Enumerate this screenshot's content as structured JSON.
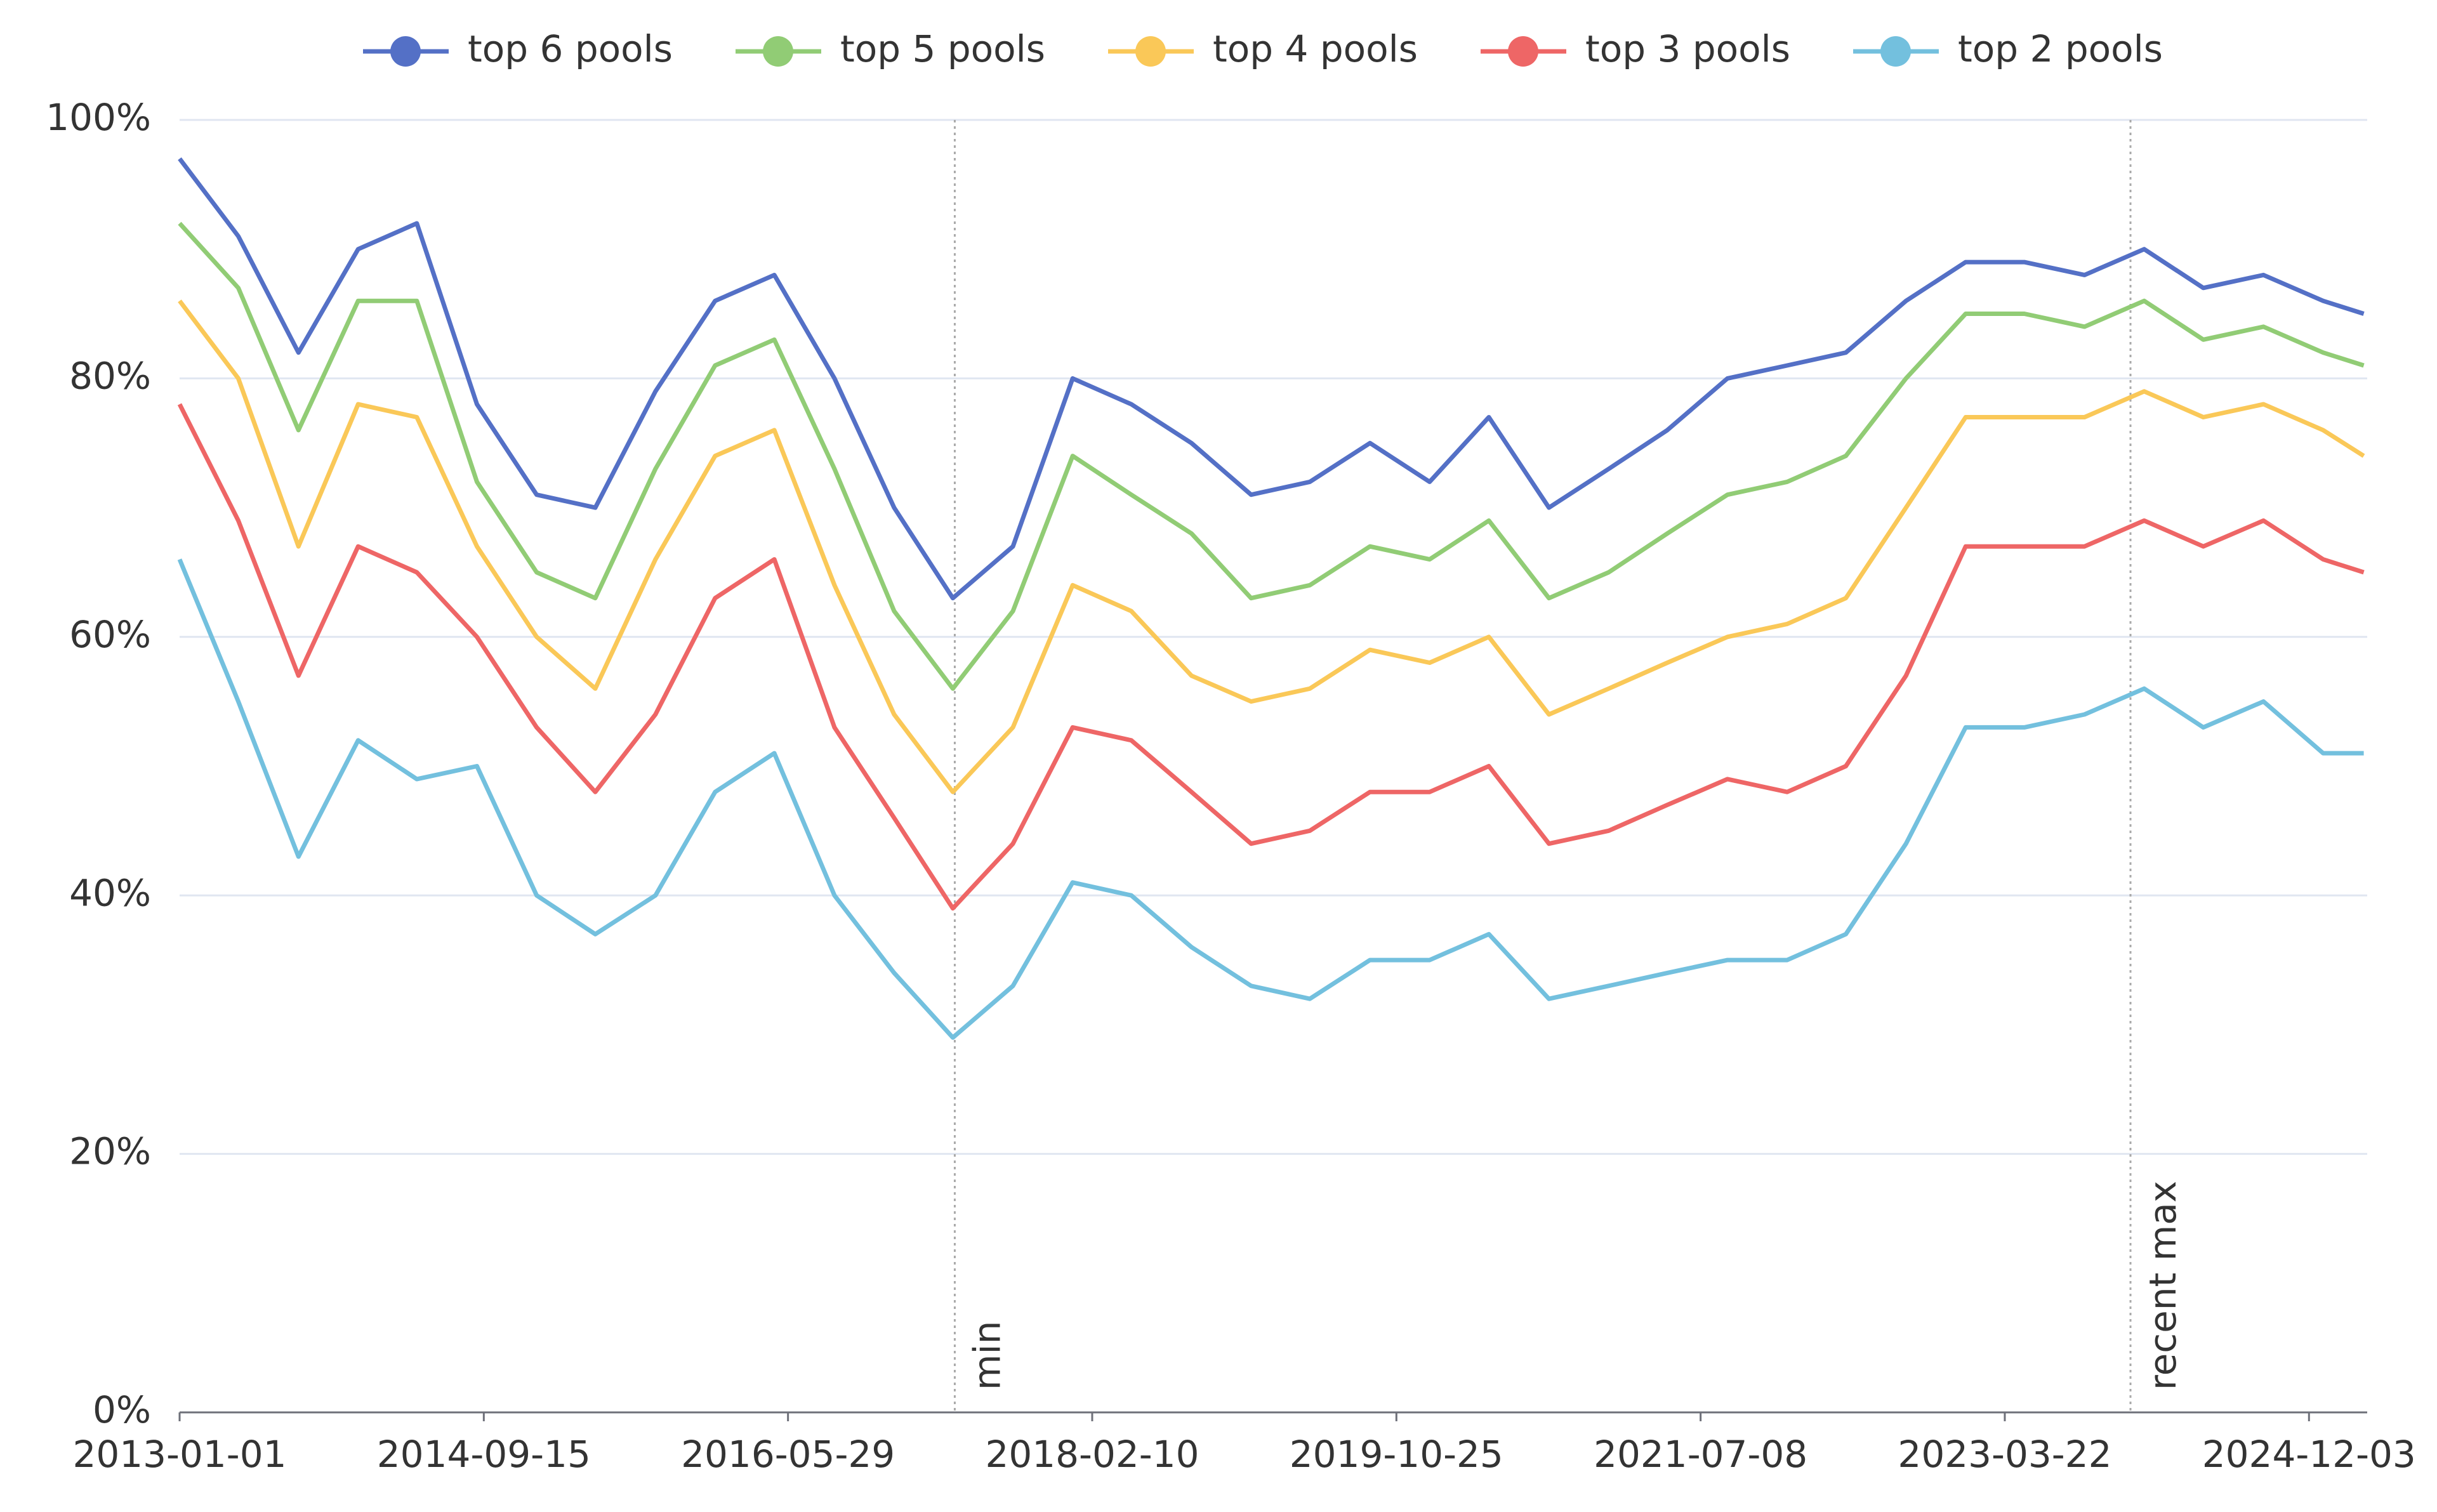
{
  "chart_data": {
    "type": "line",
    "x": [
      "2013-01-01",
      "2013-05-01",
      "2013-09-01",
      "2014-01-01",
      "2014-05-01",
      "2014-09-01",
      "2015-01-01",
      "2015-05-01",
      "2015-09-01",
      "2016-01-01",
      "2016-05-01",
      "2016-09-01",
      "2017-01-01",
      "2017-05-01",
      "2017-09-01",
      "2018-01-01",
      "2018-05-01",
      "2018-09-01",
      "2019-01-01",
      "2019-05-01",
      "2019-09-01",
      "2020-01-01",
      "2020-05-01",
      "2020-09-01",
      "2021-01-01",
      "2021-05-01",
      "2021-09-01",
      "2022-01-01",
      "2022-05-01",
      "2022-09-01",
      "2023-01-01",
      "2023-05-01",
      "2023-09-01",
      "2024-01-01",
      "2024-05-01",
      "2024-09-01",
      "2025-01-01",
      "2025-03-25"
    ],
    "series": [
      {
        "name": "top 6 pools",
        "color": "#5470c6",
        "values": [
          97,
          91,
          82,
          90,
          92,
          78,
          71,
          70,
          79,
          86,
          88,
          80,
          70,
          63,
          67,
          80,
          78,
          75,
          71,
          72,
          75,
          72,
          77,
          70,
          73,
          76,
          80,
          81,
          82,
          86,
          89,
          89,
          88,
          90,
          87,
          88,
          86,
          85
        ]
      },
      {
        "name": "top 5 pools",
        "color": "#91cc75",
        "values": [
          92,
          87,
          76,
          86,
          86,
          72,
          65,
          63,
          73,
          81,
          83,
          73,
          62,
          56,
          62,
          74,
          71,
          68,
          63,
          64,
          67,
          66,
          69,
          63,
          65,
          68,
          71,
          72,
          74,
          80,
          85,
          85,
          84,
          86,
          83,
          84,
          82,
          81
        ]
      },
      {
        "name": "top 4 pools",
        "color": "#fac858",
        "values": [
          86,
          80,
          67,
          78,
          77,
          67,
          60,
          56,
          66,
          74,
          76,
          64,
          54,
          48,
          53,
          64,
          62,
          57,
          55,
          56,
          59,
          58,
          60,
          54,
          56,
          58,
          60,
          61,
          63,
          70,
          77,
          77,
          77,
          79,
          77,
          78,
          76,
          74
        ]
      },
      {
        "name": "top 3 pools",
        "color": "#ee6666",
        "values": [
          78,
          69,
          57,
          67,
          65,
          60,
          53,
          48,
          54,
          63,
          66,
          53,
          46,
          39,
          44,
          53,
          52,
          48,
          44,
          45,
          48,
          48,
          50,
          44,
          45,
          47,
          49,
          48,
          50,
          57,
          67,
          67,
          67,
          69,
          67,
          69,
          66,
          65
        ]
      },
      {
        "name": "top 2 pools",
        "color": "#73c0de",
        "values": [
          66,
          55,
          43,
          52,
          49,
          50,
          40,
          37,
          40,
          48,
          51,
          40,
          34,
          29,
          33,
          41,
          40,
          36,
          33,
          32,
          35,
          35,
          37,
          32,
          33,
          34,
          35,
          35,
          37,
          44,
          53,
          53,
          54,
          56,
          53,
          55,
          51,
          51
        ]
      }
    ],
    "xlim": [
      "2013-01-01",
      "2025-04-01"
    ],
    "xticks": [
      "2013-01-01",
      "2014-09-15",
      "2016-05-29",
      "2018-02-10",
      "2019-10-25",
      "2021-07-08",
      "2023-03-22",
      "2024-12-03"
    ],
    "ylim": [
      0,
      100
    ],
    "yticks": [
      {
        "value": 0,
        "label": "0%"
      },
      {
        "value": 20,
        "label": "20%"
      },
      {
        "value": 40,
        "label": "40%"
      },
      {
        "value": 60,
        "label": "60%"
      },
      {
        "value": 80,
        "label": "80%"
      },
      {
        "value": 100,
        "label": "100%"
      }
    ],
    "grid": true,
    "legend": "top",
    "annotations": [
      {
        "text": "min",
        "x": "2017-05-05"
      },
      {
        "text": "recent max",
        "x": "2023-12-04"
      }
    ]
  }
}
